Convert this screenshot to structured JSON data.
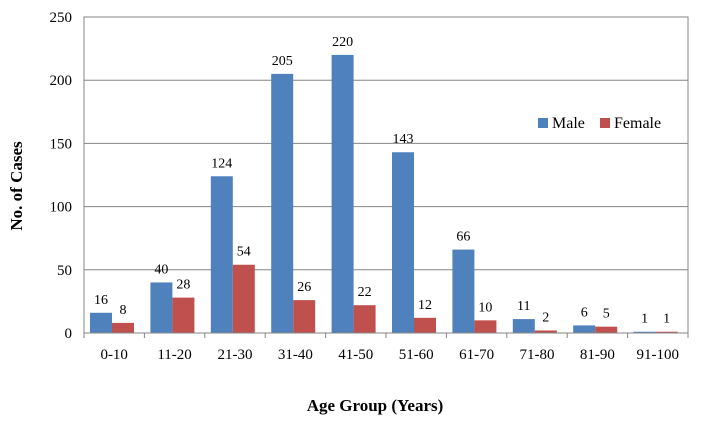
{
  "chart_data": {
    "type": "bar",
    "title": "",
    "xlabel": "Age Group (Years)",
    "ylabel": "No. of Cases",
    "ylim": [
      0,
      250
    ],
    "yticks": [
      0,
      50,
      100,
      150,
      200,
      250
    ],
    "grid": true,
    "legend_position": "right",
    "categories": [
      "0-10",
      "11-20",
      "21-30",
      "31-40",
      "41-50",
      "51-60",
      "61-70",
      "71-80",
      "81-90",
      "91-100"
    ],
    "series": [
      {
        "name": "Male",
        "color": "#4F81BD",
        "values": [
          16,
          40,
          124,
          205,
          220,
          143,
          66,
          11,
          6,
          1
        ]
      },
      {
        "name": "Female",
        "color": "#C0504D",
        "values": [
          8,
          28,
          54,
          26,
          22,
          12,
          10,
          2,
          5,
          1
        ]
      }
    ]
  }
}
